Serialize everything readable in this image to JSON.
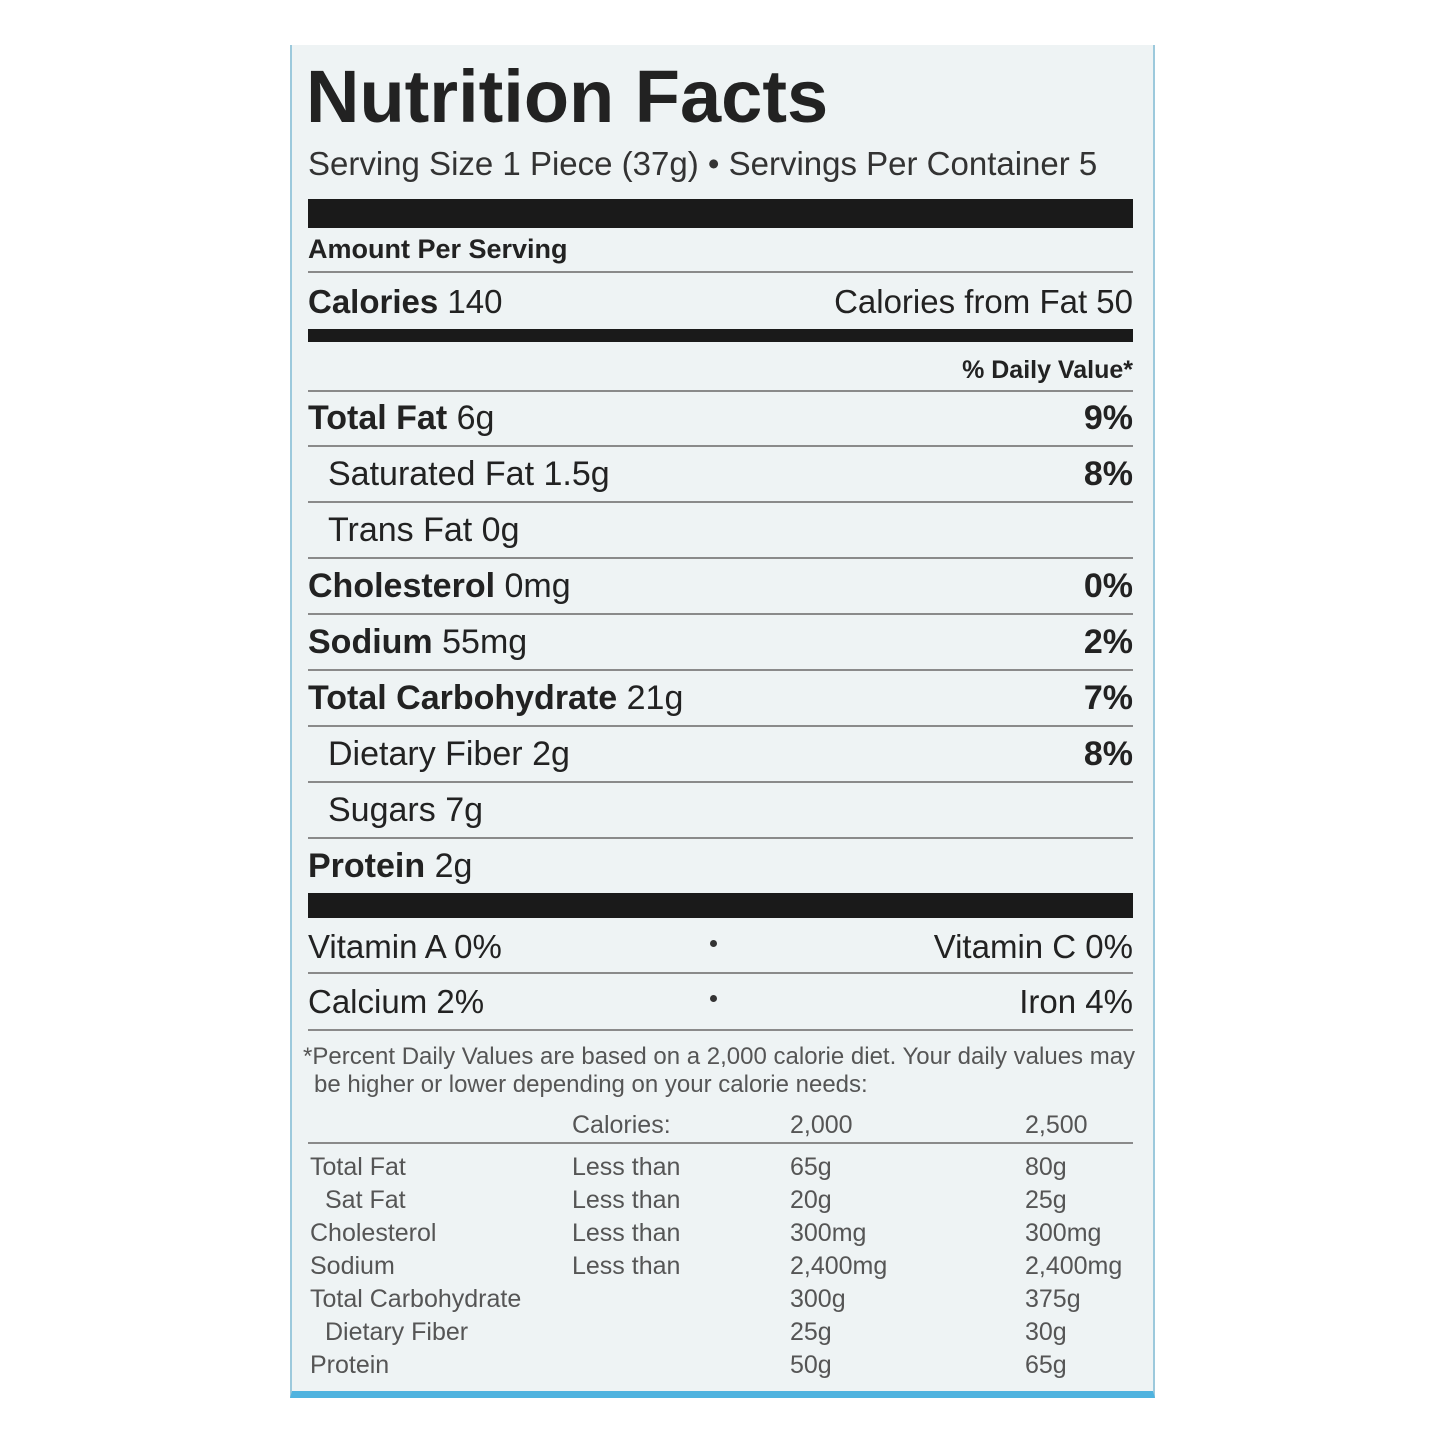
{
  "title": "Nutrition Facts",
  "serving": "Serving Size 1 Piece (37g) • Servings Per Container 5",
  "amount_per_serving": "Amount Per Serving",
  "calories": {
    "label": "Calories",
    "value": "140",
    "from_fat": "Calories from Fat 50"
  },
  "daily_value_header": "% Daily Value*",
  "nutrients": [
    {
      "name": "Total Fat",
      "amount": "6g",
      "dv": "9%",
      "indent": false
    },
    {
      "name": "Saturated Fat",
      "amount": "1.5g",
      "dv": "8%",
      "indent": true
    },
    {
      "name": "Trans Fat",
      "amount": "0g",
      "indent": true
    },
    {
      "name": "Cholesterol",
      "amount": "0mg",
      "dv": "0%",
      "indent": false
    },
    {
      "name": "Sodium",
      "amount": "55mg",
      "dv": "2%",
      "indent": false
    },
    {
      "name": "Total Carbohydrate",
      "amount": "21g",
      "dv": "7%",
      "indent": false
    },
    {
      "name": "Dietary Fiber",
      "amount": "2g",
      "dv": "8%",
      "indent": true
    },
    {
      "name": "Sugars",
      "amount": "7g",
      "indent": true
    },
    {
      "name": "Protein",
      "amount": "2g",
      "dv": null,
      "indent": false
    }
  ],
  "vitamins": [
    [
      "Vitamin A 0%",
      "Vitamin C 0%"
    ],
    [
      "Calcium 2%",
      "Iron 4%"
    ]
  ],
  "footnote": [
    "*Percent Daily Values are based on a 2,000 calorie diet. Your daily values may",
    "be higher or lower depending on your calorie needs:"
  ],
  "table": {
    "header": [
      "Calories:",
      "2,000",
      "2,500"
    ],
    "rows": [
      {
        "name": "Total Fat",
        "limit": "Less than",
        "v2000": "65g",
        "v2500": "80g",
        "indent": false
      },
      {
        "name": "Sat Fat",
        "limit": "Less than",
        "v2000": "20g",
        "v2500": "25g",
        "indent": true
      },
      {
        "name": "Cholesterol",
        "limit": "Less than",
        "v2000": "300mg",
        "v2500": "300mg",
        "indent": false
      },
      {
        "name": "Sodium",
        "limit": "Less than",
        "v2000": "2,400mg",
        "v2500": "2,400mg",
        "indent": false
      },
      {
        "name": "Total Carbohydrate",
        "v2000": "300g",
        "v2500": "375g",
        "indent": false
      },
      {
        "name": "Dietary Fiber",
        "v2000": "25g",
        "v2500": "30g",
        "indent": true
      },
      {
        "name": "Protein",
        "v2000": "50g",
        "v2500": "65g",
        "indent": false
      }
    ]
  }
}
